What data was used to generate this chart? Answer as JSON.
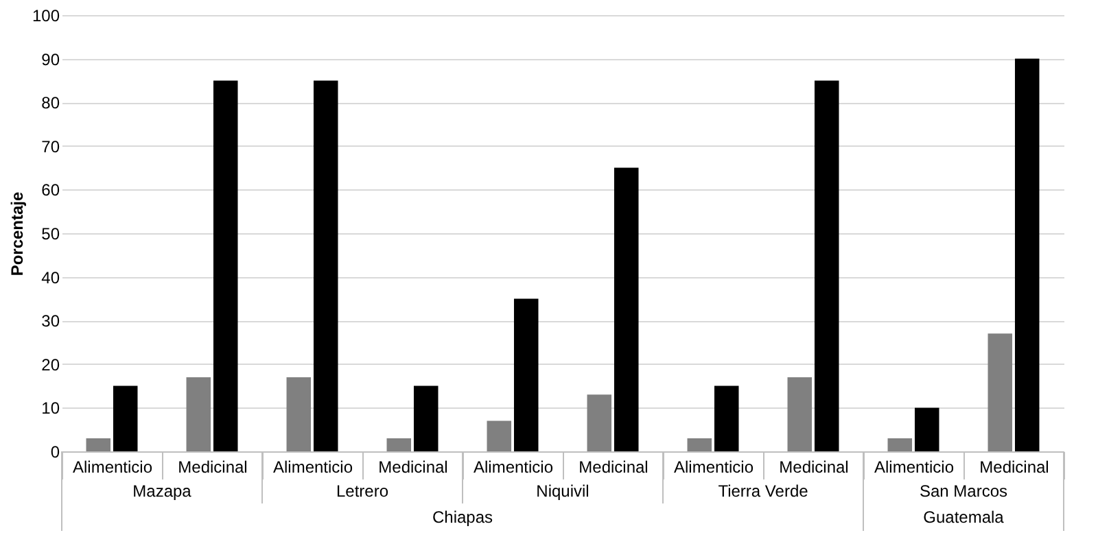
{
  "chart_data": {
    "type": "bar",
    "ylabel": "Porcentaje",
    "categories": [
      "Alimenticio",
      "Medicinal",
      "Alimenticio",
      "Medicinal",
      "Alimenticio",
      "Medicinal",
      "Alimenticio",
      "Medicinal",
      "Alimenticio",
      "Medicinal"
    ],
    "series": [
      {
        "color": "#808080",
        "values": [
          3,
          17,
          17,
          3,
          7,
          13,
          3,
          17,
          3,
          27
        ]
      },
      {
        "color": "#000000",
        "values": [
          15,
          85,
          85,
          15,
          35,
          65,
          15,
          85,
          10,
          90
        ]
      }
    ],
    "ylim": [
      0,
      100
    ],
    "yticks": [
      0,
      10,
      20,
      30,
      40,
      50,
      60,
      70,
      80,
      90,
      100
    ],
    "grid": "y",
    "annotations": [
      "Mazapa",
      "Letrero",
      "Niquivil",
      "Tierra Verde",
      "San Marcos",
      "Chiapas",
      "Guatemala"
    ]
  }
}
